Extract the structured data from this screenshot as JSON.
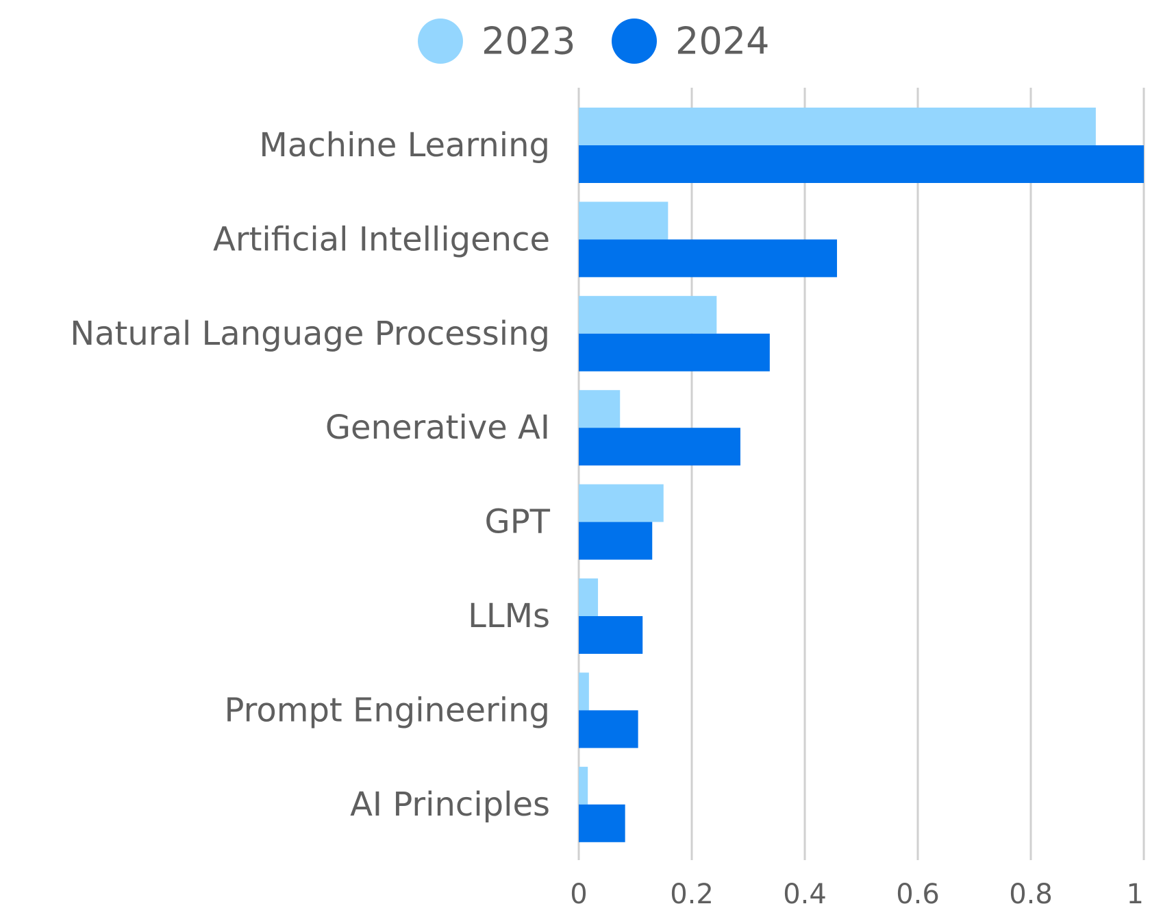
{
  "chart_data": {
    "type": "bar",
    "orientation": "horizontal",
    "title": "",
    "xlabel": "",
    "ylabel": "",
    "categories": [
      "Machine Learning",
      "Artificial Intelligence",
      "Natural Language Processing",
      "Generative AI",
      "GPT",
      "LLMs",
      "Prompt Engineering",
      "AI Principles"
    ],
    "series": [
      {
        "name": "2023",
        "color": "#94d6fe",
        "values": [
          0.915,
          0.158,
          0.244,
          0.073,
          0.15,
          0.034,
          0.018,
          0.016
        ]
      },
      {
        "name": "2024",
        "color": "#0072ec",
        "values": [
          1.0,
          0.457,
          0.338,
          0.286,
          0.13,
          0.113,
          0.105,
          0.082
        ]
      }
    ],
    "xlim": [
      0,
      1
    ],
    "x_ticks": [
      "0",
      "0.2",
      "0.4",
      "0.6",
      "0.8",
      "1"
    ],
    "x_tick_values": [
      0,
      0.2,
      0.4,
      0.6,
      0.8,
      1
    ],
    "grid": true,
    "legend_position": "top-center",
    "gridline_color": "#d0d0d0",
    "text_color": "#5f5f5f"
  }
}
